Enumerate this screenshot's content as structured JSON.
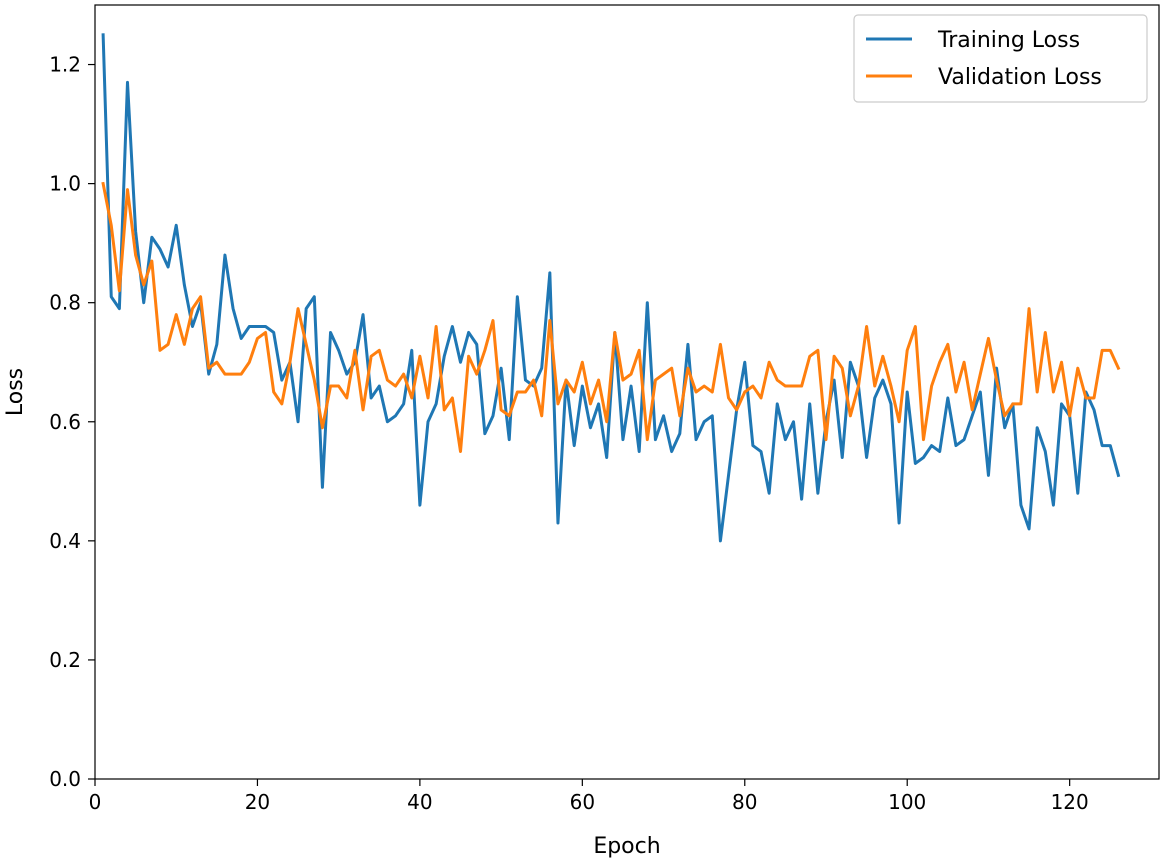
{
  "chart_data": {
    "type": "line",
    "xlabel": "Epoch",
    "ylabel": "Loss",
    "xlim": [
      0,
      131
    ],
    "ylim": [
      0,
      1.3
    ],
    "xticks": [
      0,
      20,
      40,
      60,
      80,
      100,
      120
    ],
    "yticks": [
      0.0,
      0.2,
      0.4,
      0.6,
      0.8,
      1.0,
      1.2
    ],
    "xtick_labels": [
      "0",
      "20",
      "40",
      "60",
      "80",
      "100",
      "120"
    ],
    "ytick_labels": [
      "0.0",
      "0.2",
      "0.4",
      "0.6",
      "0.8",
      "1.0",
      "1.2"
    ],
    "grid": false,
    "legend_position": "top-right",
    "x": [
      1,
      2,
      3,
      4,
      5,
      6,
      7,
      8,
      9,
      10,
      11,
      12,
      13,
      14,
      15,
      16,
      17,
      18,
      19,
      20,
      21,
      22,
      23,
      24,
      25,
      26,
      27,
      28,
      29,
      30,
      31,
      32,
      33,
      34,
      35,
      36,
      37,
      38,
      39,
      40,
      41,
      42,
      43,
      44,
      45,
      46,
      47,
      48,
      49,
      50,
      51,
      52,
      53,
      54,
      55,
      56,
      57,
      58,
      59,
      60,
      61,
      62,
      63,
      64,
      65,
      66,
      67,
      68,
      69,
      70,
      71,
      72,
      73,
      74,
      75,
      76,
      77,
      78,
      79,
      80,
      81,
      82,
      83,
      84,
      85,
      86,
      87,
      88,
      89,
      90,
      91,
      92,
      93,
      94,
      95,
      96,
      97,
      98,
      99,
      100,
      101,
      102,
      103,
      104,
      105,
      106,
      107,
      108,
      109,
      110,
      111,
      112,
      113,
      114,
      115,
      116,
      117,
      118,
      119,
      120,
      121,
      122,
      123,
      124,
      125,
      126
    ],
    "series": [
      {
        "name": "Training Loss",
        "color": "#1f77b4",
        "values": [
          1.25,
          0.81,
          0.79,
          1.17,
          0.92,
          0.8,
          0.91,
          0.89,
          0.86,
          0.93,
          0.83,
          0.76,
          0.8,
          0.68,
          0.73,
          0.88,
          0.79,
          0.74,
          0.76,
          0.76,
          0.76,
          0.75,
          0.67,
          0.7,
          0.6,
          0.79,
          0.81,
          0.49,
          0.75,
          0.72,
          0.68,
          0.7,
          0.78,
          0.64,
          0.66,
          0.6,
          0.61,
          0.63,
          0.72,
          0.46,
          0.6,
          0.63,
          0.71,
          0.76,
          0.7,
          0.75,
          0.73,
          0.58,
          0.61,
          0.69,
          0.57,
          0.81,
          0.67,
          0.66,
          0.69,
          0.85,
          0.43,
          0.67,
          0.56,
          0.66,
          0.59,
          0.63,
          0.54,
          0.75,
          0.57,
          0.66,
          0.55,
          0.8,
          0.57,
          0.61,
          0.55,
          0.58,
          0.73,
          0.57,
          0.6,
          0.61,
          0.4,
          0.51,
          0.62,
          0.7,
          0.56,
          0.55,
          0.48,
          0.63,
          0.57,
          0.6,
          0.47,
          0.63,
          0.48,
          0.6,
          0.67,
          0.54,
          0.7,
          0.66,
          0.54,
          0.64,
          0.67,
          0.63,
          0.43,
          0.65,
          0.53,
          0.54,
          0.56,
          0.55,
          0.64,
          0.56,
          0.57,
          0.61,
          0.65,
          0.51,
          0.69,
          0.59,
          0.63,
          0.46,
          0.42,
          0.59,
          0.55,
          0.46,
          0.63,
          0.61,
          0.48,
          0.65,
          0.62,
          0.56,
          0.56,
          0.51
        ]
      },
      {
        "name": "Validation Loss",
        "color": "#ff7f0e",
        "values": [
          1.0,
          0.93,
          0.82,
          0.99,
          0.88,
          0.83,
          0.87,
          0.72,
          0.73,
          0.78,
          0.73,
          0.79,
          0.81,
          0.69,
          0.7,
          0.68,
          0.68,
          0.68,
          0.7,
          0.74,
          0.75,
          0.65,
          0.63,
          0.7,
          0.79,
          0.73,
          0.67,
          0.59,
          0.66,
          0.66,
          0.64,
          0.72,
          0.62,
          0.71,
          0.72,
          0.67,
          0.66,
          0.68,
          0.64,
          0.71,
          0.64,
          0.76,
          0.62,
          0.64,
          0.55,
          0.71,
          0.68,
          0.72,
          0.77,
          0.62,
          0.61,
          0.65,
          0.65,
          0.67,
          0.61,
          0.77,
          0.63,
          0.67,
          0.65,
          0.7,
          0.63,
          0.67,
          0.6,
          0.75,
          0.67,
          0.68,
          0.72,
          0.57,
          0.67,
          0.68,
          0.69,
          0.61,
          0.69,
          0.65,
          0.66,
          0.65,
          0.73,
          0.64,
          0.62,
          0.65,
          0.66,
          0.64,
          0.7,
          0.67,
          0.66,
          0.66,
          0.66,
          0.71,
          0.72,
          0.57,
          0.71,
          0.69,
          0.61,
          0.66,
          0.76,
          0.66,
          0.71,
          0.66,
          0.6,
          0.72,
          0.76,
          0.57,
          0.66,
          0.7,
          0.73,
          0.65,
          0.7,
          0.62,
          0.68,
          0.74,
          0.67,
          0.61,
          0.63,
          0.63,
          0.79,
          0.65,
          0.75,
          0.65,
          0.7,
          0.61,
          0.69,
          0.64,
          0.64,
          0.72,
          0.72,
          0.69
        ]
      }
    ]
  }
}
